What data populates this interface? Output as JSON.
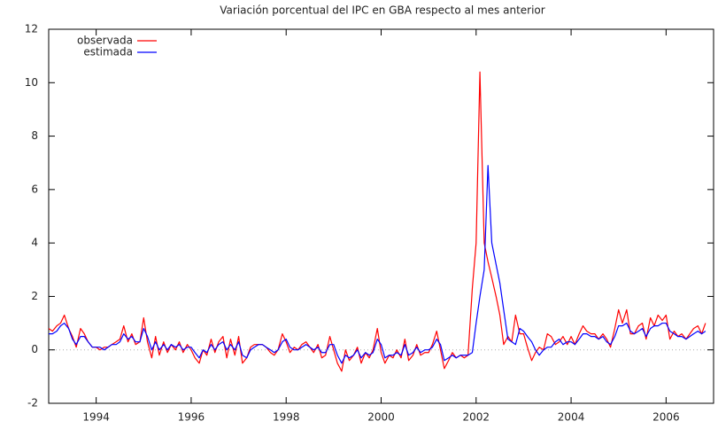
{
  "chart_data": {
    "type": "line",
    "title": "Variación porcentual del IPC en GBA respecto al mes anterior",
    "x": [
      1993,
      1993.08,
      1993.17,
      1993.25,
      1993.33,
      1993.42,
      1993.5,
      1993.58,
      1993.67,
      1993.75,
      1993.83,
      1993.92,
      1994,
      1994.08,
      1994.17,
      1994.25,
      1994.33,
      1994.42,
      1994.5,
      1994.58,
      1994.67,
      1994.75,
      1994.83,
      1994.92,
      1995,
      1995.08,
      1995.17,
      1995.25,
      1995.33,
      1995.42,
      1995.5,
      1995.58,
      1995.67,
      1995.75,
      1995.83,
      1995.92,
      1996,
      1996.08,
      1996.17,
      1996.25,
      1996.33,
      1996.42,
      1996.5,
      1996.58,
      1996.67,
      1996.75,
      1996.83,
      1996.92,
      1997,
      1997.08,
      1997.17,
      1997.25,
      1997.33,
      1997.42,
      1997.5,
      1997.58,
      1997.67,
      1997.75,
      1997.83,
      1997.92,
      1998,
      1998.08,
      1998.17,
      1998.25,
      1998.33,
      1998.42,
      1998.5,
      1998.58,
      1998.67,
      1998.75,
      1998.83,
      1998.92,
      1999,
      1999.08,
      1999.17,
      1999.25,
      1999.33,
      1999.42,
      1999.5,
      1999.58,
      1999.67,
      1999.75,
      1999.83,
      1999.92,
      2000,
      2000.08,
      2000.17,
      2000.25,
      2000.33,
      2000.42,
      2000.5,
      2000.58,
      2000.67,
      2000.75,
      2000.83,
      2000.92,
      2001,
      2001.08,
      2001.17,
      2001.25,
      2001.33,
      2001.42,
      2001.5,
      2001.58,
      2001.67,
      2001.75,
      2001.83,
      2001.92,
      2002,
      2002.08,
      2002.17,
      2002.25,
      2002.33,
      2002.42,
      2002.5,
      2002.58,
      2002.67,
      2002.75,
      2002.83,
      2002.92,
      2003,
      2003.08,
      2003.17,
      2003.25,
      2003.33,
      2003.42,
      2003.5,
      2003.58,
      2003.67,
      2003.75,
      2003.83,
      2003.92,
      2004,
      2004.08,
      2004.17,
      2004.25,
      2004.33,
      2004.42,
      2004.5,
      2004.58,
      2004.67,
      2004.75,
      2004.83,
      2004.92,
      2005,
      2005.08,
      2005.17,
      2005.25,
      2005.33,
      2005.42,
      2005.5,
      2005.58,
      2005.67,
      2005.75,
      2005.83,
      2005.92,
      2006,
      2006.08,
      2006.17,
      2006.25,
      2006.33,
      2006.42,
      2006.5,
      2006.58,
      2006.67,
      2006.75,
      2006.83
    ],
    "series": [
      {
        "name": "observada",
        "color": "#ff0000",
        "values": [
          0.8,
          0.7,
          0.9,
          1.0,
          1.3,
          0.8,
          0.5,
          0.1,
          0.8,
          0.6,
          0.3,
          0.1,
          0.1,
          0.0,
          0.1,
          0.1,
          0.2,
          0.3,
          0.4,
          0.9,
          0.3,
          0.6,
          0.2,
          0.3,
          1.2,
          0.3,
          -0.3,
          0.5,
          -0.2,
          0.3,
          -0.1,
          0.2,
          0.0,
          0.3,
          -0.1,
          0.2,
          0.0,
          -0.3,
          -0.5,
          0.0,
          -0.2,
          0.4,
          -0.1,
          0.3,
          0.5,
          -0.3,
          0.4,
          -0.2,
          0.5,
          -0.5,
          -0.3,
          0.1,
          0.2,
          0.2,
          0.2,
          0.1,
          -0.1,
          -0.2,
          0.0,
          0.6,
          0.3,
          -0.1,
          0.1,
          0.0,
          0.2,
          0.3,
          0.1,
          -0.1,
          0.2,
          -0.3,
          -0.2,
          0.5,
          0.0,
          -0.5,
          -0.8,
          0.0,
          -0.4,
          -0.2,
          0.1,
          -0.5,
          -0.1,
          -0.3,
          0.0,
          0.8,
          -0.1,
          -0.5,
          -0.2,
          -0.3,
          0.0,
          -0.3,
          0.4,
          -0.4,
          -0.2,
          0.2,
          -0.2,
          -0.1,
          -0.1,
          0.2,
          0.7,
          0.0,
          -0.7,
          -0.4,
          -0.1,
          -0.3,
          -0.2,
          -0.3,
          -0.2,
          2.3,
          4.0,
          10.4,
          4.0,
          3.3,
          2.7,
          2.0,
          1.3,
          0.2,
          0.5,
          0.3,
          1.3,
          0.6,
          0.6,
          0.1,
          -0.4,
          -0.1,
          0.1,
          0.0,
          0.6,
          0.5,
          0.2,
          0.3,
          0.5,
          0.2,
          0.5,
          0.2,
          0.6,
          0.9,
          0.7,
          0.6,
          0.6,
          0.4,
          0.6,
          0.4,
          0.1,
          0.8,
          1.5,
          1.0,
          1.5,
          0.6,
          0.6,
          0.9,
          1.0,
          0.4,
          1.2,
          0.9,
          1.3,
          1.1,
          1.3,
          0.4,
          0.7,
          0.5,
          0.6,
          0.4,
          0.6,
          0.8,
          0.9,
          0.6,
          1.0
        ]
      },
      {
        "name": "estimada",
        "color": "#0000ff",
        "values": [
          0.6,
          0.6,
          0.7,
          0.9,
          1.0,
          0.8,
          0.4,
          0.2,
          0.5,
          0.5,
          0.3,
          0.1,
          0.1,
          0.1,
          0.0,
          0.1,
          0.2,
          0.2,
          0.3,
          0.6,
          0.4,
          0.5,
          0.3,
          0.3,
          0.8,
          0.5,
          0.0,
          0.3,
          0.0,
          0.2,
          0.0,
          0.2,
          0.1,
          0.2,
          0.0,
          0.1,
          0.1,
          -0.1,
          -0.3,
          0.0,
          -0.1,
          0.2,
          0.0,
          0.2,
          0.3,
          0.0,
          0.2,
          0.0,
          0.3,
          -0.2,
          -0.3,
          0.0,
          0.1,
          0.2,
          0.2,
          0.1,
          0.0,
          -0.1,
          0.0,
          0.3,
          0.4,
          0.1,
          0.0,
          0.0,
          0.1,
          0.2,
          0.1,
          0.0,
          0.1,
          -0.1,
          -0.1,
          0.2,
          0.2,
          -0.2,
          -0.5,
          -0.2,
          -0.3,
          -0.2,
          0.0,
          -0.3,
          -0.1,
          -0.2,
          -0.1,
          0.4,
          0.2,
          -0.3,
          -0.2,
          -0.2,
          -0.1,
          -0.2,
          0.2,
          -0.2,
          -0.1,
          0.1,
          -0.1,
          0.0,
          0.0,
          0.1,
          0.4,
          0.2,
          -0.4,
          -0.3,
          -0.2,
          -0.3,
          -0.2,
          -0.2,
          -0.2,
          -0.1,
          1.0,
          2.0,
          3.0,
          6.9,
          4.0,
          3.2,
          2.5,
          1.5,
          0.4,
          0.3,
          0.2,
          0.8,
          0.7,
          0.5,
          0.3,
          0.0,
          -0.2,
          0.0,
          0.1,
          0.1,
          0.3,
          0.4,
          0.2,
          0.3,
          0.3,
          0.2,
          0.4,
          0.6,
          0.6,
          0.5,
          0.5,
          0.4,
          0.5,
          0.3,
          0.2,
          0.5,
          0.9,
          0.9,
          1.0,
          0.7,
          0.6,
          0.7,
          0.8,
          0.5,
          0.8,
          0.9,
          0.9,
          1.0,
          1.0,
          0.7,
          0.6,
          0.5,
          0.5,
          0.4,
          0.5,
          0.6,
          0.7,
          0.6,
          0.7
        ]
      }
    ],
    "xlim": [
      1993,
      2007
    ],
    "xticks": [
      1994,
      1996,
      1998,
      2000,
      2002,
      2004,
      2006
    ],
    "ylim": [
      -2,
      12
    ],
    "yticks": [
      -2,
      0,
      2,
      4,
      6,
      8,
      10,
      12
    ],
    "zero_line": true,
    "legend": "top-left"
  }
}
